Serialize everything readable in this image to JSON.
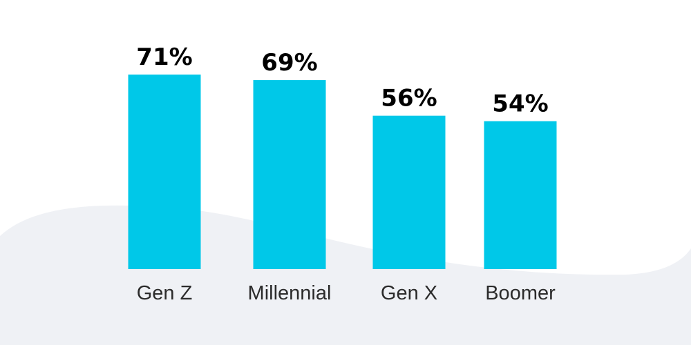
{
  "chart_data": {
    "type": "bar",
    "categories": [
      "Gen Z",
      "Millennial",
      "Gen X",
      "Boomer"
    ],
    "values": [
      71,
      69,
      56,
      54
    ],
    "value_labels": [
      "71%",
      "69%",
      "56%",
      "54%"
    ],
    "title": "",
    "xlabel": "",
    "ylabel": "",
    "ylim": [
      0,
      100
    ],
    "grid": false,
    "legend": "none",
    "bar_color": "#00c8e8",
    "background_wave_color": "#eff1f5"
  }
}
